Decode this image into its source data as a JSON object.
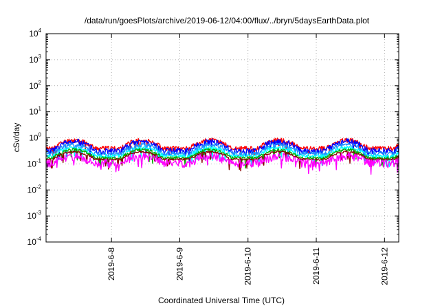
{
  "chart_data": {
    "type": "line",
    "title": "/data/run/goesPlots/archive/2019-06-12/04:00/flux/../bryn/5daysEarthData.plot",
    "xlabel": "Coordinated Universal Time (UTC)",
    "ylabel": "cSv/day",
    "yscale": "log",
    "ylim": [
      0.0001,
      10000
    ],
    "y_ticks": [
      {
        "value": 0.0001,
        "base": "10",
        "exp": "-4"
      },
      {
        "value": 0.001,
        "base": "10",
        "exp": "-3"
      },
      {
        "value": 0.01,
        "base": "10",
        "exp": "-2"
      },
      {
        "value": 0.1,
        "base": "10",
        "exp": "-1"
      },
      {
        "value": 1,
        "base": "10",
        "exp": "0"
      },
      {
        "value": 10,
        "base": "10",
        "exp": "1"
      },
      {
        "value": 100,
        "base": "10",
        "exp": "2"
      },
      {
        "value": 1000,
        "base": "10",
        "exp": "3"
      },
      {
        "value": 10000,
        "base": "10",
        "exp": "4"
      }
    ],
    "xlim": [
      "2019-06-07 01:00",
      "2019-06-12 05:00"
    ],
    "x_ticks": [
      "2019-6-8",
      "2019-6-9",
      "2019-6-10",
      "2019-6-11",
      "2019-6-12"
    ],
    "x_tick_dates": [
      "2019-06-08",
      "2019-06-09",
      "2019-06-10",
      "2019-06-11",
      "2019-06-12"
    ],
    "grid": true,
    "legend": "none",
    "series": [
      {
        "color": "#ff0000",
        "base": 0.82,
        "min": 0.4,
        "amp": 0.2,
        "seed": 11
      },
      {
        "color": "#0000ff",
        "base": 0.72,
        "min": 0.32,
        "amp": 0.28,
        "seed": 23
      },
      {
        "color": "#1e90ff",
        "base": 0.55,
        "min": 0.25,
        "amp": 0.2,
        "seed": 37
      },
      {
        "color": "#00ffff",
        "base": 0.42,
        "min": 0.2,
        "amp": 0.15,
        "seed": 41
      },
      {
        "color": "#00aa00",
        "base": 0.35,
        "min": 0.17,
        "amp": 0.12,
        "seed": 53
      },
      {
        "color": "#8b0000",
        "base": 0.29,
        "min": 0.15,
        "amp": 0.08,
        "seed": 67
      },
      {
        "color": "#ff00ff",
        "base": 0.2,
        "min": 0.11,
        "amp": 0.35,
        "seed": 79
      }
    ]
  }
}
